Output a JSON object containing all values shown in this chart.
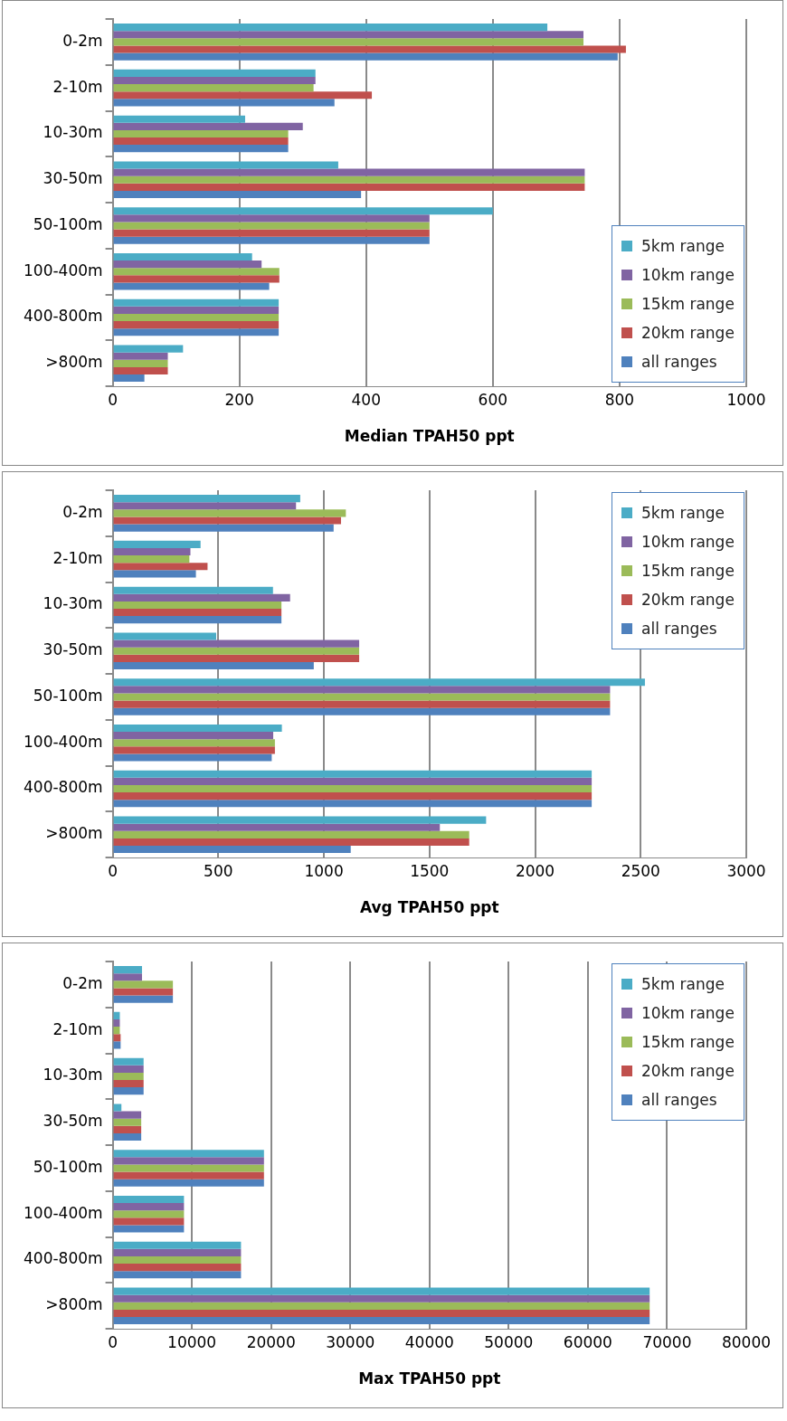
{
  "chart_data": [
    {
      "type": "bar",
      "orientation": "horizontal",
      "xlabel": "Median TPAH50 ppt",
      "categories": [
        "0-2m",
        "2-10m",
        "10-30m",
        "30-50m",
        "50-100m",
        "100-400m",
        "400-800m",
        ">800m"
      ],
      "xlim": [
        0,
        1000
      ],
      "xticks": [
        0,
        200,
        400,
        600,
        800,
        1000
      ],
      "grid": "x",
      "legend": "bottom right",
      "series": [
        {
          "name": "5km range",
          "color": "#4bacc6",
          "values": [
            686,
            320,
            209,
            356,
            600,
            220,
            262,
            111
          ]
        },
        {
          "name": "10km range",
          "color": "#8064a2",
          "values": [
            743,
            320,
            300,
            745,
            500,
            235,
            262,
            87
          ]
        },
        {
          "name": "15km range",
          "color": "#9bbb59",
          "values": [
            743,
            317,
            277,
            745,
            500,
            263,
            262,
            87
          ]
        },
        {
          "name": "20km range",
          "color": "#c0504d",
          "values": [
            810,
            409,
            277,
            745,
            500,
            263,
            262,
            87
          ]
        },
        {
          "name": "all ranges",
          "color": "#4f81bd",
          "values": [
            797,
            350,
            277,
            392,
            500,
            247,
            262,
            50
          ]
        }
      ]
    },
    {
      "type": "bar",
      "orientation": "horizontal",
      "xlabel": "Avg TPAH50 ppt",
      "categories": [
        "0-2m",
        "2-10m",
        "10-30m",
        "30-50m",
        "50-100m",
        "100-400m",
        "400-800m",
        ">800m"
      ],
      "xlim": [
        0,
        3000
      ],
      "xticks": [
        0,
        500,
        1000,
        1500,
        2000,
        2500,
        3000
      ],
      "grid": "x",
      "legend": "top right",
      "series": [
        {
          "name": "5km range",
          "color": "#4bacc6",
          "values": [
            888,
            416,
            759,
            490,
            2520,
            801,
            2268,
            1768
          ]
        },
        {
          "name": "10km range",
          "color": "#8064a2",
          "values": [
            868,
            368,
            840,
            1167,
            2355,
            760,
            2268,
            1549
          ]
        },
        {
          "name": "15km range",
          "color": "#9bbb59",
          "values": [
            1104,
            363,
            799,
            1167,
            2355,
            768,
            2268,
            1688
          ]
        },
        {
          "name": "20km range",
          "color": "#c0504d",
          "values": [
            1081,
            449,
            799,
            1167,
            2355,
            768,
            2268,
            1688
          ]
        },
        {
          "name": "all ranges",
          "color": "#4f81bd",
          "values": [
            1046,
            394,
            799,
            952,
            2355,
            753,
            2268,
            1127
          ]
        }
      ]
    },
    {
      "type": "bar",
      "orientation": "horizontal",
      "xlabel": "Max TPAH50 ppt",
      "categories": [
        "0-2m",
        "2-10m",
        "10-30m",
        "30-50m",
        "50-100m",
        "100-400m",
        "400-800m",
        ">800m"
      ],
      "xlim": [
        0,
        80000
      ],
      "xticks": [
        0,
        10000,
        20000,
        30000,
        40000,
        50000,
        60000,
        70000,
        80000
      ],
      "grid": "x",
      "legend": "top right",
      "series": [
        {
          "name": "5km range",
          "color": "#4bacc6",
          "values": [
            3700,
            900,
            3900,
            1100,
            19100,
            9000,
            16200,
            67800
          ]
        },
        {
          "name": "10km range",
          "color": "#8064a2",
          "values": [
            3700,
            900,
            3900,
            3600,
            19100,
            9000,
            16200,
            67800
          ]
        },
        {
          "name": "15km range",
          "color": "#9bbb59",
          "values": [
            7600,
            900,
            3900,
            3600,
            19100,
            9000,
            16200,
            67800
          ]
        },
        {
          "name": "20km range",
          "color": "#c0504d",
          "values": [
            7600,
            1000,
            3900,
            3600,
            19100,
            9000,
            16200,
            67800
          ]
        },
        {
          "name": "all ranges",
          "color": "#4f81bd",
          "values": [
            7600,
            1000,
            3900,
            3600,
            19100,
            9000,
            16200,
            67800
          ]
        }
      ]
    }
  ]
}
